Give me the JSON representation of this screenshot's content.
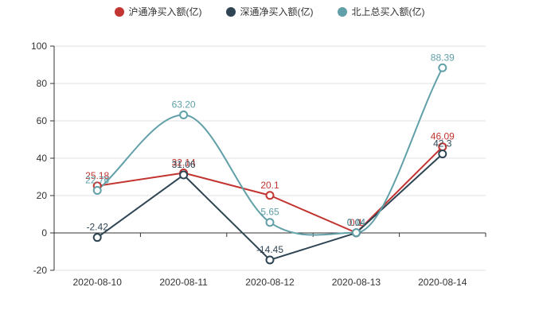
{
  "chart_data": {
    "type": "line",
    "title": "",
    "categories": [
      "2020-08-10",
      "2020-08-11",
      "2020-08-12",
      "2020-08-13",
      "2020-08-14"
    ],
    "series": [
      {
        "name": "沪通净买入额(亿)",
        "color": "#c23531",
        "smooth": false,
        "values": [
          25.18,
          32.14,
          20.1,
          0.1,
          46.09
        ],
        "labels": [
          "25.18",
          "32.14",
          "20.1",
          "0.1",
          "46.09"
        ]
      },
      {
        "name": "深通净买入额(亿)",
        "color": "#2f4554",
        "smooth": false,
        "values": [
          -2.42,
          31.06,
          -14.45,
          0.04,
          42.3
        ],
        "labels": [
          "-2.42",
          "31.06",
          "-14.45",
          "0.04",
          "42.3"
        ]
      },
      {
        "name": "北上总买入额(亿)",
        "color": "#61a0a8",
        "smooth": true,
        "values": [
          22.76,
          63.2,
          5.65,
          0.14,
          88.39
        ],
        "labels": [
          "22.76",
          "63.20",
          "5.65",
          "0.14",
          "88.39"
        ]
      }
    ],
    "xlabel": "",
    "ylabel": "",
    "ylim": [
      -20,
      100
    ],
    "y_ticks": [
      -20,
      0,
      20,
      40,
      60,
      80,
      100
    ],
    "grid": true,
    "legend_position": "top",
    "marker": "hollow-circle",
    "colors": {
      "axis": "#333333",
      "gridline": "#e0e0e6",
      "tick_label": "#333333",
      "background": "#ffffff"
    }
  }
}
